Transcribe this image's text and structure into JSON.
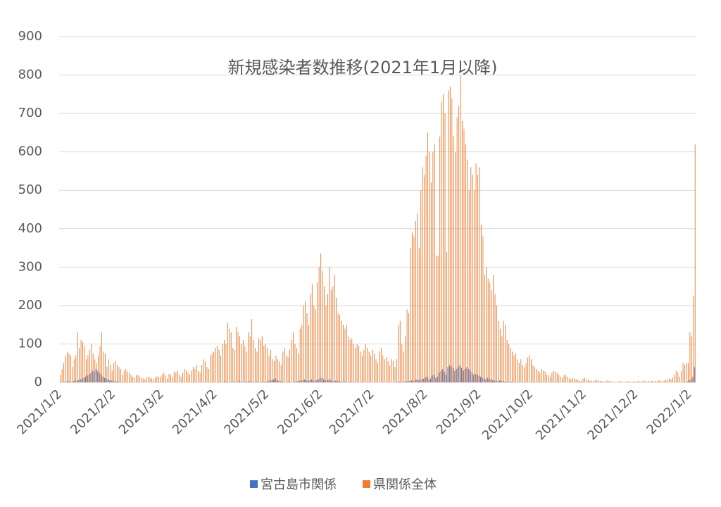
{
  "chart_data": {
    "type": "bar",
    "title": "新規感染者数推移(2021年1月以降)",
    "categories": [
      "2021/1/2",
      null,
      null,
      null,
      null,
      null,
      null,
      null,
      null,
      null,
      null,
      null,
      null,
      null,
      null,
      null,
      null,
      null,
      null,
      null,
      null,
      null,
      null,
      null,
      null,
      null,
      null,
      null,
      null,
      null,
      null,
      "2021/2/2",
      null,
      null,
      null,
      null,
      null,
      null,
      null,
      null,
      null,
      null,
      null,
      null,
      null,
      null,
      null,
      null,
      null,
      null,
      null,
      null,
      null,
      null,
      null,
      null,
      null,
      null,
      null,
      "2021/3/2",
      null,
      null,
      null,
      null,
      null,
      null,
      null,
      null,
      null,
      null,
      null,
      null,
      null,
      null,
      null,
      null,
      null,
      null,
      null,
      null,
      null,
      null,
      null,
      null,
      null,
      null,
      null,
      null,
      null,
      null,
      "2021/4/2",
      null,
      null,
      null,
      null,
      null,
      null,
      null,
      null,
      null,
      null,
      null,
      null,
      null,
      null,
      null,
      null,
      null,
      null,
      null,
      null,
      null,
      null,
      null,
      null,
      null,
      null,
      null,
      null,
      null,
      "2021/5/2",
      null,
      null,
      null,
      null,
      null,
      null,
      null,
      null,
      null,
      null,
      null,
      null,
      null,
      null,
      null,
      null,
      null,
      null,
      null,
      null,
      null,
      null,
      null,
      null,
      null,
      null,
      null,
      null,
      null,
      null,
      "2021/6/2",
      null,
      null,
      null,
      null,
      null,
      null,
      null,
      null,
      null,
      null,
      null,
      null,
      null,
      null,
      null,
      null,
      null,
      null,
      null,
      null,
      null,
      null,
      null,
      null,
      null,
      null,
      null,
      null,
      null,
      "2021/7/2",
      null,
      null,
      null,
      null,
      null,
      null,
      null,
      null,
      null,
      null,
      null,
      null,
      null,
      null,
      null,
      null,
      null,
      null,
      null,
      null,
      null,
      null,
      null,
      null,
      null,
      null,
      null,
      null,
      null,
      null,
      "2021/8/2",
      null,
      null,
      null,
      null,
      null,
      null,
      null,
      null,
      null,
      null,
      null,
      null,
      null,
      null,
      null,
      null,
      null,
      null,
      null,
      null,
      null,
      null,
      null,
      null,
      null,
      null,
      null,
      null,
      null,
      null,
      "2021/9/2",
      null,
      null,
      null,
      null,
      null,
      null,
      null,
      null,
      null,
      null,
      null,
      null,
      null,
      null,
      null,
      null,
      null,
      null,
      null,
      null,
      null,
      null,
      null,
      null,
      null,
      null,
      null,
      null,
      null,
      "2021/10/2",
      null,
      null,
      null,
      null,
      null,
      null,
      null,
      null,
      null,
      null,
      null,
      null,
      null,
      null,
      null,
      null,
      null,
      null,
      null,
      null,
      null,
      null,
      null,
      null,
      null,
      null,
      null,
      null,
      null,
      null,
      "2021/11/2",
      null,
      null,
      null,
      null,
      null,
      null,
      null,
      null,
      null,
      null,
      null,
      null,
      null,
      null,
      null,
      null,
      null,
      null,
      null,
      null,
      null,
      null,
      null,
      null,
      null,
      null,
      null,
      null,
      null,
      "2021/12/2",
      null,
      null,
      null,
      null,
      null,
      null,
      null,
      null,
      null,
      null,
      null,
      null,
      null,
      null,
      null,
      null,
      null,
      null,
      null,
      null,
      null,
      null,
      null,
      null,
      null,
      null,
      null,
      null,
      null,
      null,
      "2022/1/2",
      null,
      null,
      null
    ],
    "series": [
      {
        "name": "宮古島市関係",
        "color": "#4472c4",
        "values": [
          0,
          1,
          0,
          2,
          1,
          3,
          2,
          1,
          3,
          5,
          4,
          6,
          8,
          10,
          12,
          15,
          18,
          20,
          25,
          30,
          28,
          35,
          30,
          25,
          20,
          15,
          12,
          10,
          8,
          6,
          5,
          4,
          3,
          2,
          2,
          1,
          1,
          0,
          1,
          0,
          0,
          1,
          0,
          0,
          0,
          0,
          0,
          0,
          0,
          0,
          0,
          0,
          0,
          0,
          0,
          0,
          0,
          0,
          0,
          0,
          0,
          0,
          0,
          0,
          0,
          0,
          0,
          0,
          0,
          0,
          0,
          0,
          0,
          0,
          0,
          0,
          0,
          0,
          0,
          0,
          0,
          0,
          0,
          0,
          0,
          0,
          0,
          0,
          0,
          0,
          0,
          0,
          0,
          1,
          0,
          0,
          2,
          1,
          0,
          0,
          1,
          2,
          1,
          0,
          3,
          2,
          1,
          0,
          2,
          1,
          3,
          2,
          1,
          0,
          2,
          1,
          0,
          1,
          0,
          1,
          2,
          3,
          5,
          6,
          8,
          10,
          6,
          4,
          3,
          2,
          1,
          0,
          1,
          2,
          1,
          0,
          1,
          2,
          3,
          5,
          4,
          6,
          8,
          5,
          4,
          6,
          8,
          5,
          4,
          6,
          8,
          10,
          12,
          8,
          6,
          5,
          8,
          6,
          4,
          3,
          5,
          4,
          3,
          2,
          1,
          2,
          1,
          0,
          1,
          0,
          0,
          1,
          0,
          0,
          0,
          1,
          0,
          0,
          0,
          0,
          0,
          0,
          0,
          0,
          0,
          0,
          0,
          0,
          0,
          0,
          0,
          0,
          0,
          0,
          0,
          0,
          1,
          2,
          1,
          0,
          2,
          3,
          2,
          4,
          5,
          3,
          6,
          8,
          5,
          7,
          9,
          10,
          12,
          15,
          8,
          10,
          18,
          20,
          12,
          15,
          25,
          30,
          35,
          28,
          20,
          40,
          45,
          42,
          38,
          30,
          35,
          40,
          45,
          38,
          30,
          35,
          40,
          35,
          30,
          25,
          20,
          22,
          20,
          18,
          15,
          12,
          10,
          8,
          12,
          10,
          8,
          6,
          5,
          4,
          3,
          5,
          4,
          3,
          2,
          2,
          1,
          1,
          2,
          1,
          0,
          1,
          0,
          0,
          1,
          0,
          0,
          0,
          0,
          0,
          0,
          0,
          0,
          0,
          0,
          0,
          0,
          0,
          0,
          0,
          0,
          0,
          0,
          0,
          0,
          0,
          0,
          0,
          0,
          0,
          0,
          0,
          0,
          0,
          0,
          0,
          0,
          0,
          0,
          0,
          0,
          0,
          0,
          0,
          0,
          0,
          0,
          0,
          0,
          0,
          0,
          0,
          0,
          0,
          0,
          0,
          0,
          0,
          0,
          0,
          0,
          0,
          0,
          0,
          0,
          0,
          0,
          0,
          0,
          0,
          0,
          0,
          0,
          0,
          0,
          0,
          0,
          0,
          0,
          0,
          0,
          0,
          0,
          0,
          0,
          0,
          0,
          0,
          0,
          0,
          0,
          0,
          0,
          0,
          0,
          0,
          0,
          0,
          0,
          0,
          2,
          5,
          8,
          15,
          40
        ]
      },
      {
        "name": "県関係全体",
        "color": "#ed7d31",
        "values": [
          20,
          35,
          50,
          70,
          80,
          75,
          70,
          40,
          60,
          70,
          130,
          90,
          110,
          105,
          95,
          60,
          70,
          85,
          100,
          75,
          60,
          50,
          70,
          95,
          130,
          80,
          75,
          40,
          60,
          45,
          30,
          50,
          55,
          45,
          40,
          35,
          20,
          30,
          35,
          28,
          25,
          20,
          15,
          12,
          18,
          20,
          15,
          12,
          10,
          8,
          14,
          15,
          12,
          10,
          8,
          12,
          16,
          14,
          15,
          20,
          25,
          18,
          10,
          22,
          20,
          15,
          28,
          25,
          30,
          20,
          15,
          25,
          35,
          30,
          25,
          20,
          30,
          40,
          35,
          45,
          30,
          25,
          45,
          60,
          55,
          40,
          35,
          70,
          75,
          80,
          90,
          95,
          85,
          70,
          100,
          110,
          100,
          155,
          140,
          130,
          90,
          85,
          145,
          130,
          120,
          100,
          110,
          95,
          80,
          130,
          120,
          165,
          110,
          90,
          80,
          115,
          110,
          120,
          95,
          100,
          90,
          70,
          85,
          60,
          55,
          70,
          60,
          55,
          45,
          80,
          90,
          70,
          65,
          85,
          110,
          130,
          100,
          90,
          75,
          140,
          150,
          200,
          210,
          180,
          150,
          230,
          255,
          200,
          190,
          260,
          300,
          335,
          290,
          250,
          200,
          230,
          300,
          240,
          250,
          280,
          220,
          180,
          175,
          160,
          150,
          140,
          150,
          120,
          110,
          115,
          100,
          90,
          100,
          95,
          80,
          70,
          85,
          100,
          90,
          80,
          70,
          85,
          75,
          60,
          50,
          80,
          90,
          70,
          60,
          65,
          55,
          45,
          60,
          55,
          40,
          60,
          150,
          160,
          100,
          80,
          120,
          190,
          180,
          350,
          390,
          380,
          420,
          440,
          350,
          500,
          560,
          540,
          590,
          650,
          600,
          520,
          600,
          620,
          330,
          330,
          640,
          730,
          750,
          700,
          340,
          760,
          770,
          740,
          640,
          600,
          690,
          720,
          800,
          680,
          660,
          620,
          580,
          500,
          560,
          540,
          500,
          570,
          540,
          560,
          410,
          380,
          280,
          300,
          270,
          260,
          240,
          280,
          230,
          200,
          160,
          140,
          120,
          160,
          150,
          110,
          100,
          90,
          80,
          70,
          75,
          60,
          50,
          60,
          45,
          40,
          50,
          65,
          70,
          60,
          45,
          40,
          35,
          30,
          25,
          35,
          30,
          28,
          20,
          18,
          15,
          25,
          30,
          28,
          25,
          20,
          15,
          12,
          18,
          20,
          15,
          10,
          8,
          12,
          10,
          8,
          6,
          5,
          4,
          10,
          12,
          8,
          6,
          4,
          5,
          3,
          5,
          7,
          5,
          4,
          3,
          2,
          3,
          5,
          4,
          3,
          2,
          2,
          1,
          2,
          3,
          2,
          1,
          1,
          2,
          3,
          2,
          1,
          2,
          3,
          2,
          4,
          2,
          3,
          5,
          3,
          2,
          4,
          3,
          5,
          2,
          4,
          3,
          6,
          5,
          3,
          4,
          6,
          8,
          10,
          8,
          12,
          20,
          30,
          25,
          15,
          30,
          50,
          45,
          50,
          50,
          130,
          120,
          225,
          620
        ]
      }
    ],
    "ylim": [
      0,
      900
    ],
    "yticks": [
      0,
      100,
      200,
      300,
      400,
      500,
      600,
      700,
      800,
      900
    ],
    "grid": true
  }
}
